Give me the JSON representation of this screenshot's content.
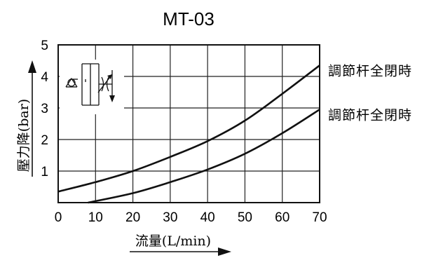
{
  "chart_data": {
    "type": "line",
    "title": "MT-03",
    "xlabel": "流量(L/min)",
    "ylabel": "壓力降(bar)",
    "xlim": [
      0,
      70
    ],
    "ylim": [
      0,
      5
    ],
    "xticks": [
      "0",
      "10",
      "20",
      "30",
      "40",
      "50",
      "60",
      "70"
    ],
    "yticks": [
      "1",
      "2",
      "3",
      "4",
      "5"
    ],
    "grid": true,
    "series": [
      {
        "name": "調節杆全閉時",
        "x": [
          0,
          10,
          20,
          30,
          40,
          50,
          60,
          70
        ],
        "y": [
          0.35,
          0.65,
          1.0,
          1.45,
          1.95,
          2.6,
          3.45,
          4.35
        ]
      },
      {
        "name": "調節杆全閉時",
        "x": [
          8,
          20,
          30,
          40,
          50,
          60,
          70
        ],
        "y": [
          0.0,
          0.3,
          0.65,
          1.05,
          1.55,
          2.2,
          2.95
        ]
      }
    ]
  }
}
